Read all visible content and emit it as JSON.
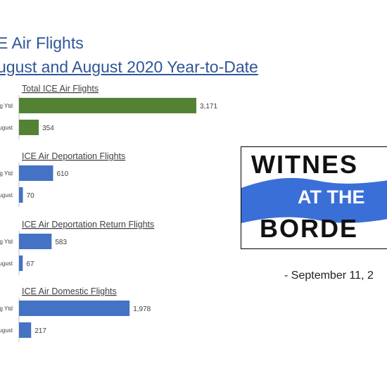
{
  "header": {
    "title_line1": "E Air Flights",
    "title_line2": "ugust and August 2020 Year-to-Date"
  },
  "logo": {
    "line1": "WITNES",
    "line2": "AT THE",
    "line3": "BORDE",
    "colors": {
      "wave": "#3a6fd8",
      "ink": "#111111"
    }
  },
  "dateline": "-  September 11, 2",
  "colors": {
    "green": "#548235",
    "blue": "#4472c4",
    "title": "#2f5597"
  },
  "chart_data": [
    {
      "type": "bar",
      "orientation": "horizontal",
      "title": "Total ICE Air Flights",
      "categories": [
        "g Ytd",
        "ugust"
      ],
      "values": [
        3171,
        354
      ],
      "value_labels": [
        "3,171",
        "354"
      ],
      "color": "#548235",
      "xlim": [
        0,
        3171
      ]
    },
    {
      "type": "bar",
      "orientation": "horizontal",
      "title": "ICE Air Deportation Flights",
      "categories": [
        "g Ytd",
        "ugust"
      ],
      "values": [
        610,
        70
      ],
      "value_labels": [
        "610",
        "70"
      ],
      "color": "#4472c4",
      "xlim": [
        0,
        3171
      ]
    },
    {
      "type": "bar",
      "orientation": "horizontal",
      "title": "ICE Air Deportation Return Flights",
      "categories": [
        "g Ytd",
        "ugust"
      ],
      "values": [
        583,
        67
      ],
      "value_labels": [
        "583",
        "67"
      ],
      "color": "#4472c4",
      "xlim": [
        0,
        3171
      ]
    },
    {
      "type": "bar",
      "orientation": "horizontal",
      "title": "ICE Air Domestic Flights",
      "categories": [
        "g Ytd",
        "ugust"
      ],
      "values": [
        1978,
        217
      ],
      "value_labels": [
        "1,978",
        "217"
      ],
      "color": "#4472c4",
      "xlim": [
        0,
        3171
      ]
    }
  ]
}
